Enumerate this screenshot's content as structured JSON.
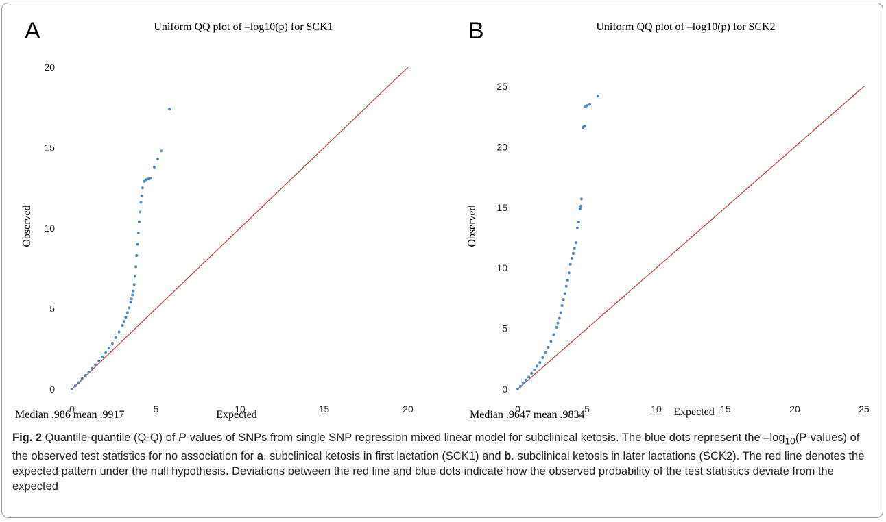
{
  "panels": [
    {
      "letter": "A",
      "title": "Uniform QQ plot of –log10(p) for SCK1",
      "xlabel": "Expected",
      "ylabel": "Observed",
      "stats": "Median .986  mean .9917"
    },
    {
      "letter": "B",
      "title": "Uniform QQ plot of –log10(p) for SCK2",
      "xlabel": "Expected",
      "ylabel": "Observed",
      "stats": "Median .9647  mean .9834"
    }
  ],
  "caption": {
    "fig_label": "Fig. 2",
    "text_1": " Quantile-quantile (Q-Q) of ",
    "p_italic": "P",
    "text_2": "-values of SNPs from single SNP regression mixed linear model for subclinical ketosis. The blue dots represent the –log",
    "sub": "10",
    "text_3": "(P-values) of the observed test statistics for no association for ",
    "a_label": "a",
    "text_4": ". subclinical ketosis in first lactation (SCK1) and ",
    "b_label": "b",
    "text_5": ". subclinical ketosis in later lactations (SCK2). The red line denotes the expected pattern under the null hypothesis. Deviations between the red line and blue dots indicate how the observed probability of the test statistics deviate from the expected"
  },
  "chart_data": [
    {
      "type": "scatter",
      "title": "Uniform QQ plot of –log10(p) for SCK1",
      "xlabel": "Expected",
      "ylabel": "Observed",
      "xlim": [
        0,
        20
      ],
      "ylim": [
        0,
        20
      ],
      "xticks": [
        0,
        5,
        10,
        15,
        20
      ],
      "yticks": [
        0,
        5,
        10,
        15,
        20
      ],
      "grid": false,
      "reference_line": {
        "x": [
          0,
          20
        ],
        "y": [
          0,
          20
        ],
        "color": "#c0392b"
      },
      "point_color": "#4a86c5",
      "series": [
        {
          "x": [
            0,
            0.2,
            0.4,
            0.6,
            0.8,
            1.0,
            1.2,
            1.4,
            1.6,
            1.8,
            2.0,
            2.2,
            2.4,
            2.6,
            2.8,
            3.0,
            3.1,
            3.2,
            3.3,
            3.4,
            3.5,
            3.55,
            3.6,
            3.65,
            3.7,
            3.75,
            3.8,
            3.85,
            3.9,
            3.95,
            4.0,
            4.05,
            4.1,
            4.15,
            4.2,
            4.3,
            4.4,
            4.5,
            4.6,
            4.7,
            4.9,
            5.1,
            5.3,
            5.8
          ],
          "y": [
            0,
            0.2,
            0.4,
            0.65,
            0.85,
            1.05,
            1.3,
            1.5,
            1.75,
            2.0,
            2.25,
            2.55,
            2.85,
            3.2,
            3.55,
            3.95,
            4.2,
            4.45,
            4.75,
            5.05,
            5.4,
            5.6,
            5.85,
            6.1,
            6.5,
            7.0,
            7.6,
            8.3,
            9.0,
            9.7,
            10.4,
            11.0,
            11.6,
            12.0,
            12.5,
            12.9,
            13.0,
            13.05,
            13.05,
            13.1,
            13.8,
            14.3,
            14.8,
            17.4
          ]
        }
      ]
    },
    {
      "type": "scatter",
      "title": "Uniform QQ plot of –log10(p) for SCK2",
      "xlabel": "Expected",
      "ylabel": "Observed",
      "xlim": [
        0,
        25
      ],
      "ylim": [
        0,
        25
      ],
      "xticks": [
        0,
        5,
        10,
        15,
        20,
        25
      ],
      "yticks": [
        0,
        5,
        10,
        15,
        20,
        25
      ],
      "grid": false,
      "reference_line": {
        "x": [
          0,
          25
        ],
        "y": [
          0,
          25
        ],
        "color": "#c0392b"
      },
      "point_color": "#4a86c5",
      "series": [
        {
          "x": [
            0,
            0.2,
            0.4,
            0.6,
            0.8,
            1.0,
            1.2,
            1.4,
            1.6,
            1.8,
            2.0,
            2.2,
            2.4,
            2.6,
            2.8,
            2.9,
            3.0,
            3.1,
            3.2,
            3.3,
            3.4,
            3.5,
            3.6,
            3.7,
            3.8,
            3.9,
            4.0,
            4.1,
            4.2,
            4.3,
            4.4,
            4.5,
            4.55,
            4.6,
            4.7,
            4.8,
            4.85,
            4.9,
            5.0,
            5.2,
            5.8
          ],
          "y": [
            0,
            0.25,
            0.5,
            0.75,
            1.0,
            1.3,
            1.6,
            1.9,
            2.2,
            2.6,
            3.0,
            3.45,
            3.95,
            4.5,
            5.1,
            5.45,
            5.85,
            6.3,
            6.9,
            7.4,
            7.9,
            8.5,
            9.0,
            9.6,
            10.3,
            10.8,
            11.2,
            11.6,
            12.1,
            13.3,
            13.8,
            14.9,
            15.1,
            15.7,
            21.6,
            21.7,
            21.7,
            23.3,
            23.4,
            23.5,
            24.2
          ]
        }
      ]
    }
  ]
}
